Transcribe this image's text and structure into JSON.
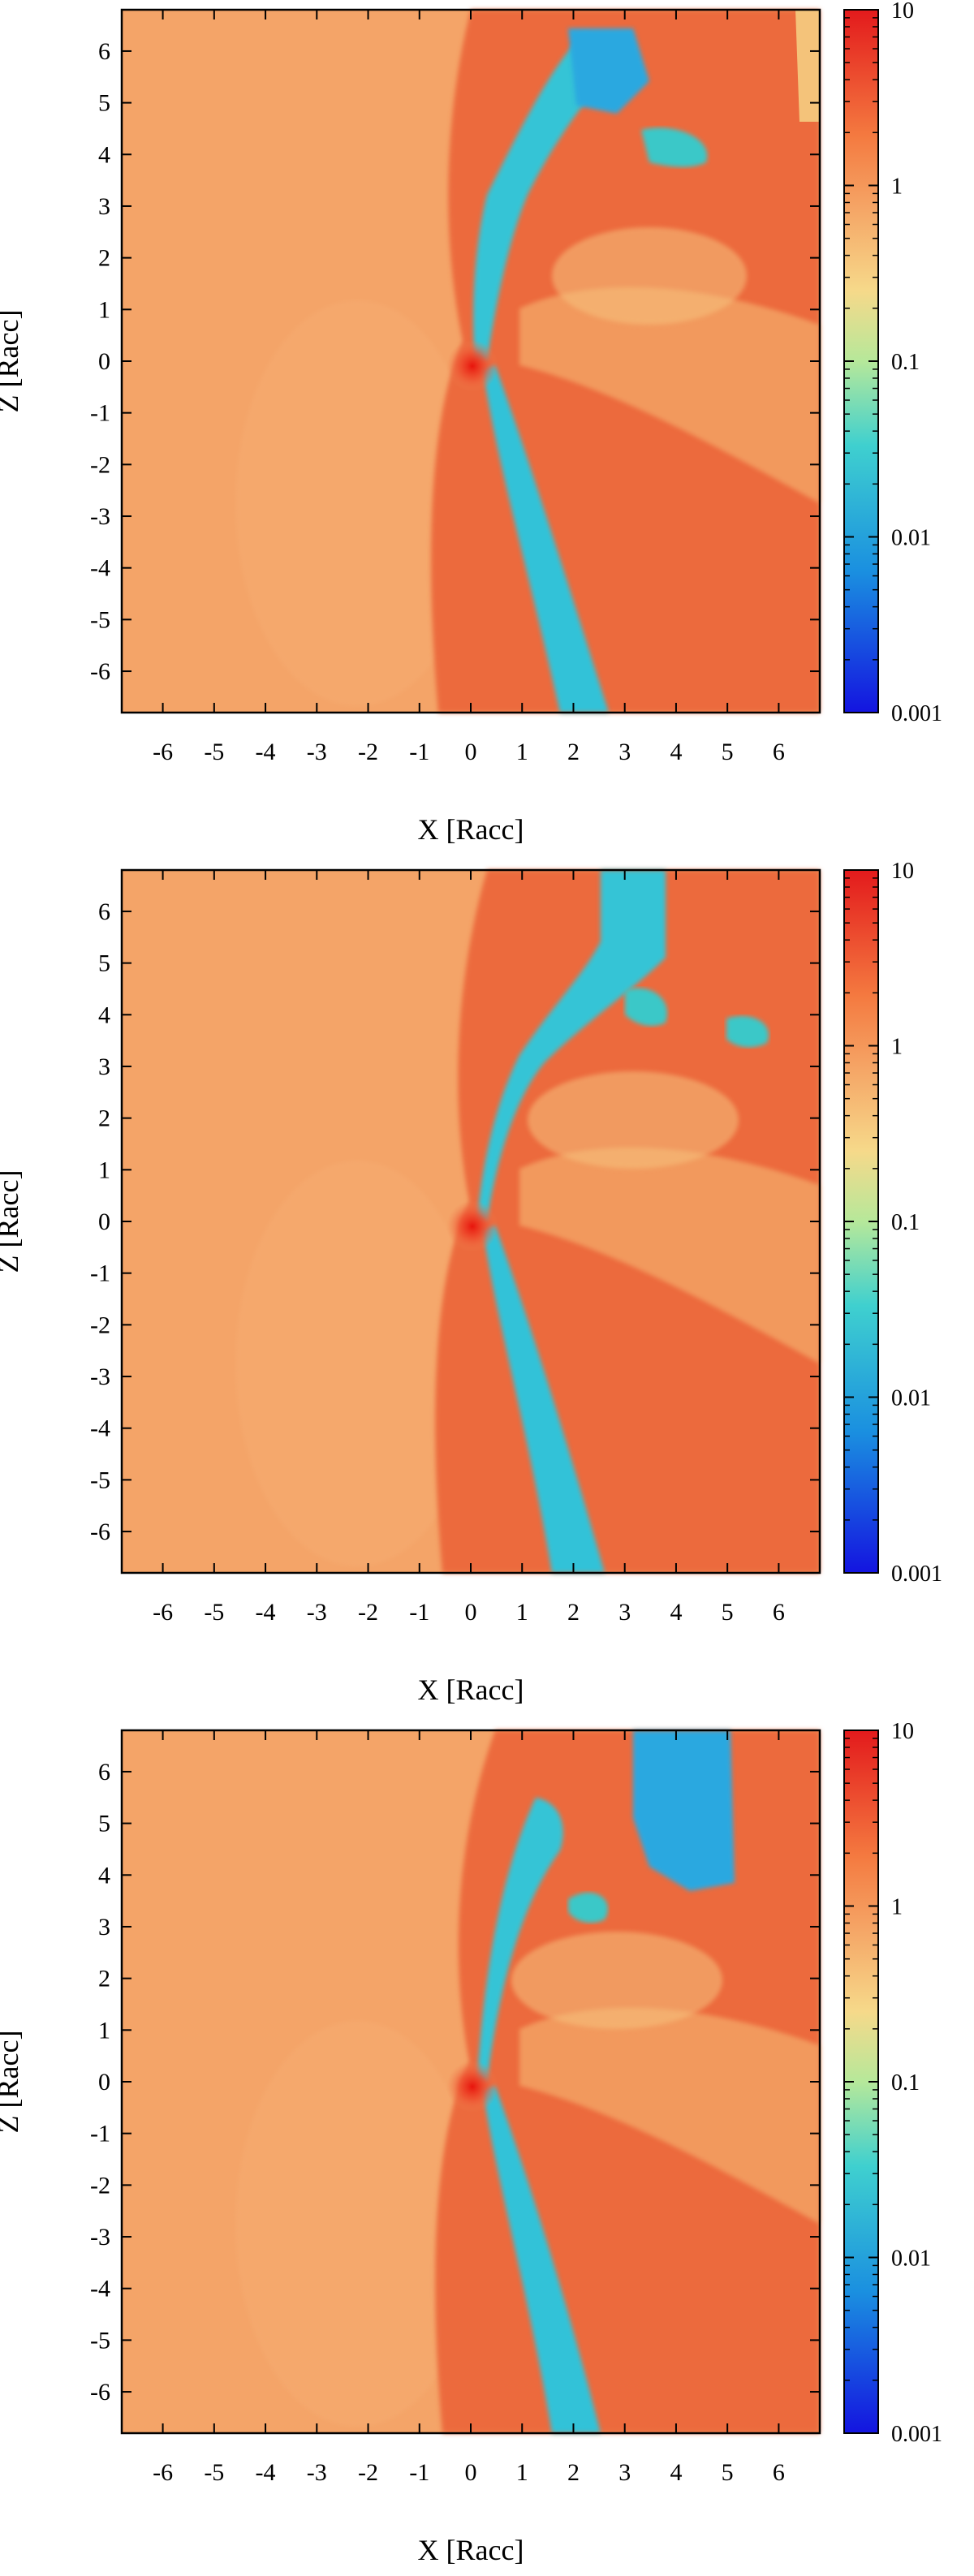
{
  "chart_data": [
    {
      "type": "heatmap",
      "xlabel": "X [Racc]",
      "ylabel": "Z [Racc]",
      "xlim": [
        -6.8,
        6.8
      ],
      "ylim": [
        -6.8,
        6.8
      ],
      "xticks": [
        -6,
        -5,
        -4,
        -3,
        -2,
        -1,
        0,
        1,
        2,
        3,
        4,
        5,
        6
      ],
      "yticks": [
        -6,
        -5,
        -4,
        -3,
        -2,
        -1,
        0,
        1,
        2,
        3,
        4,
        5,
        6
      ],
      "colorbar": {
        "scale": "log",
        "range": [
          0.001,
          10
        ],
        "ticks": [
          "10",
          "1",
          "0.1",
          "0.01",
          "0.001"
        ]
      },
      "colors": {
        "background": "#f4a468",
        "shock": "#ec6a3c",
        "tail": "#2fc8d8",
        "core": "#e8140c",
        "pale": "#f6c87c"
      }
    },
    {
      "type": "heatmap",
      "xlabel": "X [Racc]",
      "ylabel": "Z [Racc]",
      "xlim": [
        -6.8,
        6.8
      ],
      "ylim": [
        -6.8,
        6.8
      ],
      "xticks": [
        -6,
        -5,
        -4,
        -3,
        -2,
        -1,
        0,
        1,
        2,
        3,
        4,
        5,
        6
      ],
      "yticks": [
        -6,
        -5,
        -4,
        -3,
        -2,
        -1,
        0,
        1,
        2,
        3,
        4,
        5,
        6
      ],
      "colorbar": {
        "scale": "log",
        "range": [
          0.001,
          10
        ],
        "ticks": [
          "10",
          "1",
          "0.1",
          "0.01",
          "0.001"
        ]
      },
      "colors": {
        "background": "#f4a468",
        "shock": "#ec6a3c",
        "tail": "#2fc8d8",
        "core": "#e8140c",
        "pale": "#f6c87c"
      }
    },
    {
      "type": "heatmap",
      "xlabel": "X [Racc]",
      "ylabel": "Z [Racc]",
      "xlim": [
        -6.8,
        6.8
      ],
      "ylim": [
        -6.8,
        6.8
      ],
      "xticks": [
        -6,
        -5,
        -4,
        -3,
        -2,
        -1,
        0,
        1,
        2,
        3,
        4,
        5,
        6
      ],
      "yticks": [
        -6,
        -5,
        -4,
        -3,
        -2,
        -1,
        0,
        1,
        2,
        3,
        4,
        5,
        6
      ],
      "colorbar": {
        "scale": "log",
        "range": [
          0.001,
          10
        ],
        "ticks": [
          "10",
          "1",
          "0.1",
          "0.01",
          "0.001"
        ]
      },
      "colors": {
        "background": "#f4a468",
        "shock": "#ec6a3c",
        "tail": "#2fc8d8",
        "core": "#e8140c",
        "pale": "#f6c87c"
      }
    }
  ]
}
